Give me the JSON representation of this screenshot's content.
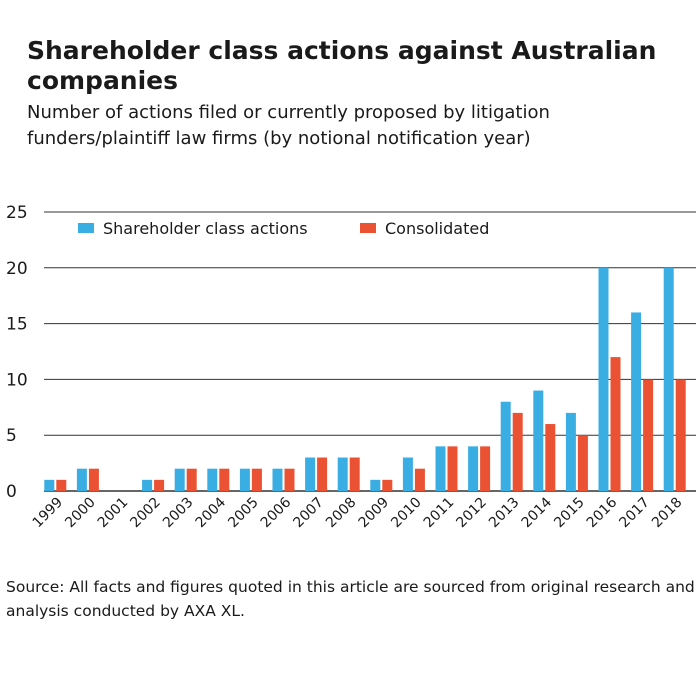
{
  "header": {
    "title": "Shareholder class actions against Australian companies",
    "subtitle": "Number of actions filed or currently proposed by litigation funders/plaintiff law firms (by notional notification year)"
  },
  "footer": {
    "source": "Source: All facts and figures quoted in this article are sourced from original research and analysis conducted by AXA XL."
  },
  "colors": {
    "series1": "#3aaee3",
    "series2": "#ea5233",
    "grid": "#333333"
  },
  "chart_data": {
    "type": "bar",
    "title": "Shareholder class actions against Australian companies",
    "subtitle": "Number of actions filed or currently proposed by litigation funders/plaintiff law firms (by notional notification year)",
    "xlabel": "",
    "ylabel": "",
    "ylim": [
      0,
      25
    ],
    "yticks": [
      0,
      5,
      10,
      15,
      20,
      25
    ],
    "grid": true,
    "legend": "top",
    "categories": [
      "1999",
      "2000",
      "2001",
      "2002",
      "2003",
      "2004",
      "2005",
      "2006",
      "2007",
      "2008",
      "2009",
      "2010",
      "2011",
      "2012",
      "2013",
      "2014",
      "2015",
      "2016",
      "2017",
      "2018"
    ],
    "series": [
      {
        "name": "Shareholder class actions",
        "color": "#3aaee3",
        "values": [
          1,
          2,
          0,
          1,
          2,
          2,
          2,
          2,
          3,
          3,
          1,
          3,
          4,
          4,
          8,
          9,
          7,
          20,
          16,
          20
        ]
      },
      {
        "name": "Consolidated",
        "color": "#ea5233",
        "values": [
          1,
          2,
          0,
          1,
          2,
          2,
          2,
          2,
          3,
          3,
          1,
          2,
          4,
          4,
          7,
          6,
          5,
          12,
          10,
          10
        ]
      }
    ]
  }
}
